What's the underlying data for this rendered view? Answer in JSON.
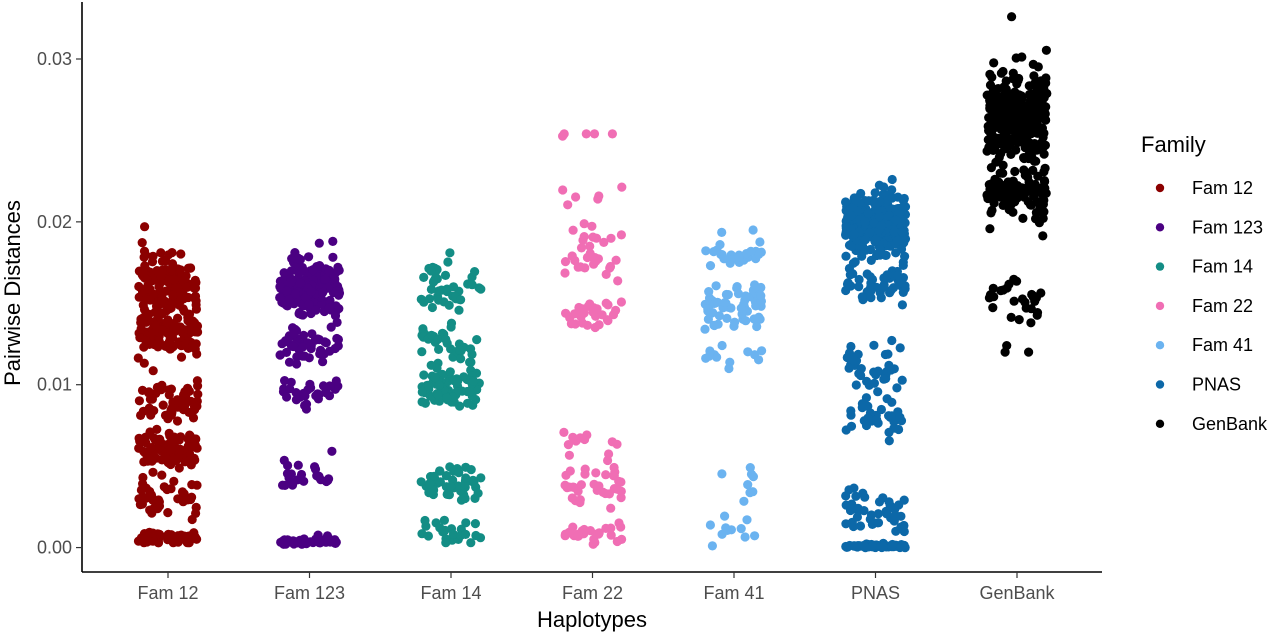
{
  "chart_data": {
    "type": "scatter",
    "subtype": "jitter-strip",
    "title": "",
    "xlabel": "Haplotypes",
    "ylabel": "Pairwise Distances",
    "ylim": [
      -0.0015,
      0.0335
    ],
    "yticks": [
      0.0,
      0.01,
      0.02,
      0.03
    ],
    "ytick_labels": [
      "0.00",
      "0.01",
      "0.02",
      "0.03"
    ],
    "grid": false,
    "legend": {
      "title": "Family",
      "placement": "right"
    },
    "categories": [
      "Fam 12",
      "Fam 123",
      "Fam 14",
      "Fam 22",
      "Fam 41",
      "PNAS",
      "GenBank"
    ],
    "series": [
      {
        "name": "Fam 12",
        "color": "#8B0000",
        "point_count": 500,
        "clusters": [
          {
            "center": 0.016,
            "spread": 0.0018,
            "weight": 0.28
          },
          {
            "center": 0.0132,
            "spread": 0.0012,
            "weight": 0.2
          },
          {
            "center": 0.009,
            "spread": 0.0012,
            "weight": 0.12
          },
          {
            "center": 0.006,
            "spread": 0.001,
            "weight": 0.2
          },
          {
            "center": 0.003,
            "spread": 0.001,
            "weight": 0.08
          },
          {
            "center": 0.0006,
            "spread": 0.0003,
            "weight": 0.12
          }
        ],
        "min": 0.0003,
        "max": 0.0197
      },
      {
        "name": "Fam 123",
        "color": "#4B0082",
        "point_count": 300,
        "clusters": [
          {
            "center": 0.016,
            "spread": 0.0016,
            "weight": 0.55
          },
          {
            "center": 0.0125,
            "spread": 0.001,
            "weight": 0.15
          },
          {
            "center": 0.0095,
            "spread": 0.0007,
            "weight": 0.1
          },
          {
            "center": 0.0045,
            "spread": 0.0008,
            "weight": 0.08
          },
          {
            "center": 0.0004,
            "spread": 0.0002,
            "weight": 0.12
          }
        ],
        "min": 0.0002,
        "max": 0.0188
      },
      {
        "name": "Fam 14",
        "color": "#138D85",
        "point_count": 220,
        "clusters": [
          {
            "center": 0.016,
            "spread": 0.0012,
            "weight": 0.18
          },
          {
            "center": 0.0125,
            "spread": 0.001,
            "weight": 0.14
          },
          {
            "center": 0.0098,
            "spread": 0.001,
            "weight": 0.36
          },
          {
            "center": 0.004,
            "spread": 0.001,
            "weight": 0.22
          },
          {
            "center": 0.001,
            "spread": 0.0005,
            "weight": 0.1
          }
        ],
        "min": 0.0003,
        "max": 0.0181
      },
      {
        "name": "Fam 22",
        "color": "#F06EB4",
        "point_count": 140,
        "clusters": [
          {
            "center": 0.0255,
            "spread": 0.0003,
            "weight": 0.03
          },
          {
            "center": 0.0215,
            "spread": 0.0007,
            "weight": 0.04
          },
          {
            "center": 0.018,
            "spread": 0.0014,
            "weight": 0.22
          },
          {
            "center": 0.0145,
            "spread": 0.001,
            "weight": 0.2
          },
          {
            "center": 0.0065,
            "spread": 0.0008,
            "weight": 0.08
          },
          {
            "center": 0.0038,
            "spread": 0.001,
            "weight": 0.25
          },
          {
            "center": 0.0008,
            "spread": 0.0005,
            "weight": 0.18
          }
        ],
        "min": 0.0002,
        "max": 0.0254
      },
      {
        "name": "Fam 41",
        "color": "#6BB3F0",
        "point_count": 120,
        "clusters": [
          {
            "center": 0.018,
            "spread": 0.0008,
            "weight": 0.2
          },
          {
            "center": 0.015,
            "spread": 0.0012,
            "weight": 0.55
          },
          {
            "center": 0.0118,
            "spread": 0.0008,
            "weight": 0.1
          },
          {
            "center": 0.0035,
            "spread": 0.0009,
            "weight": 0.07
          },
          {
            "center": 0.0012,
            "spread": 0.0005,
            "weight": 0.08
          }
        ],
        "min": 0.0001,
        "max": 0.0195
      },
      {
        "name": "PNAS",
        "color": "#0C68A8",
        "point_count": 560,
        "clusters": [
          {
            "center": 0.0198,
            "spread": 0.0014,
            "weight": 0.6
          },
          {
            "center": 0.0162,
            "spread": 0.001,
            "weight": 0.08
          },
          {
            "center": 0.011,
            "spread": 0.0014,
            "weight": 0.07
          },
          {
            "center": 0.008,
            "spread": 0.001,
            "weight": 0.05
          },
          {
            "center": 0.0022,
            "spread": 0.001,
            "weight": 0.08
          },
          {
            "center": 0.0001,
            "spread": 0.0001,
            "weight": 0.12
          }
        ],
        "min": 0.0,
        "max": 0.0226
      },
      {
        "name": "GenBank",
        "color": "#000000",
        "point_count": 420,
        "clusters": [
          {
            "center": 0.0265,
            "spread": 0.0022,
            "weight": 0.7
          },
          {
            "center": 0.0215,
            "spread": 0.0015,
            "weight": 0.24
          },
          {
            "center": 0.0155,
            "spread": 0.001,
            "weight": 0.06
          }
        ],
        "extra_points": [
          0.0124,
          0.012,
          0.014,
          0.0138
        ],
        "min": 0.012,
        "max": 0.0326
      }
    ]
  }
}
